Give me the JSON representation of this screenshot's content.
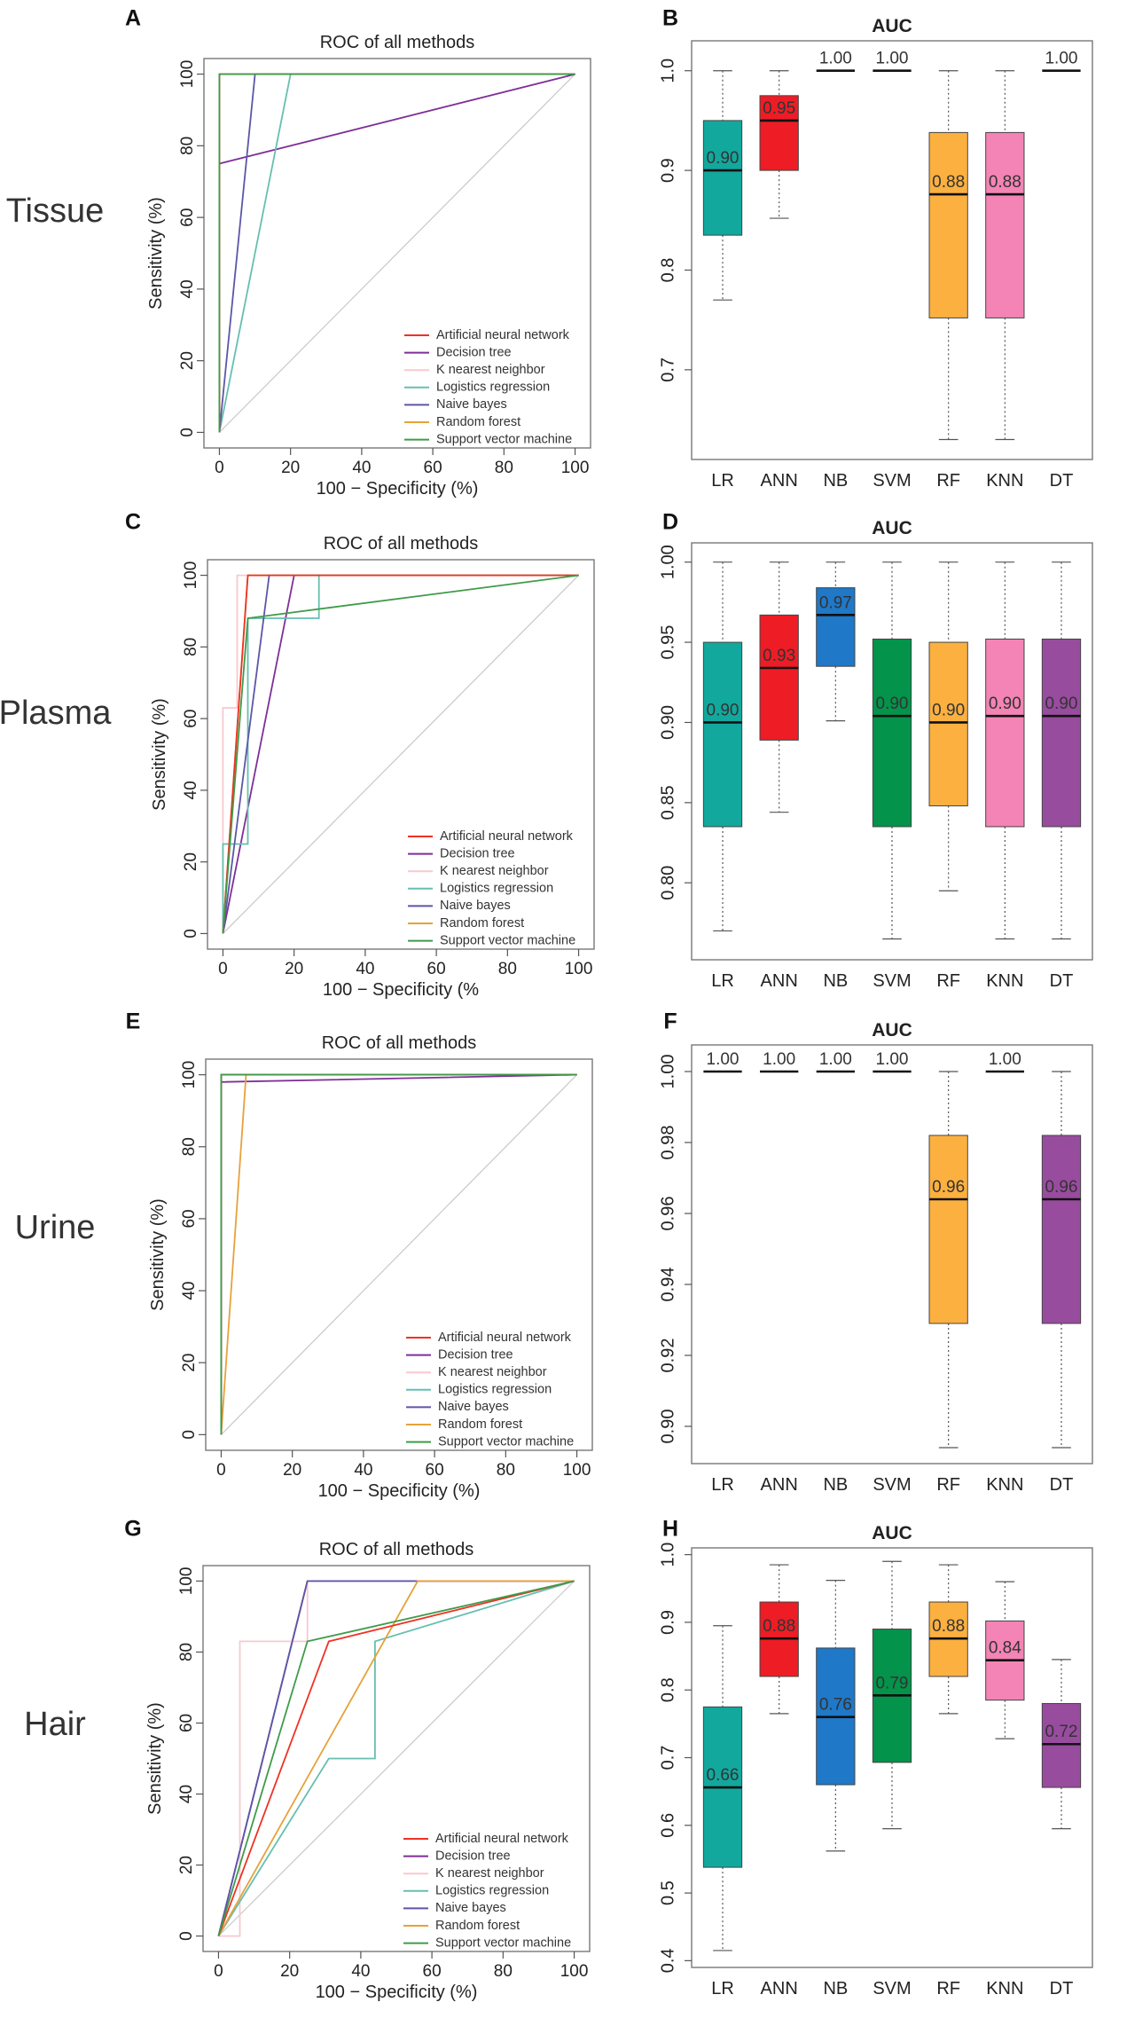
{
  "figure": {
    "row_labels": [
      "Tissue",
      "Plasma",
      "Urine",
      "Hair"
    ],
    "panel_letters": [
      "A",
      "B",
      "C",
      "D",
      "E",
      "F",
      "G",
      "H"
    ]
  },
  "colors": {
    "LR": "#12a89d",
    "ANN": "#ee1c25",
    "NB": "#1f78c8",
    "SVM": "#04934a",
    "RF": "#fbb040",
    "KNN": "#f384b5",
    "DT": "#984c9e",
    "roc_ann": "#ee3224",
    "roc_dt": "#7e2f97",
    "roc_knn": "#f9c8d0",
    "roc_lr": "#66bfb0",
    "roc_nb": "#5c56a8",
    "roc_rf": "#e6a23a",
    "roc_svm": "#3f9b4a"
  },
  "chart_data": [
    {
      "panel": "A",
      "type": "line",
      "title": "ROC of all methods",
      "xlabel": "100 − Specificity (%)",
      "ylabel": "Sensitivity (%)",
      "xlim": [
        0,
        100
      ],
      "ylim": [
        0,
        100
      ],
      "ticks": [
        "0",
        "20",
        "40",
        "60",
        "80",
        "100"
      ],
      "series": [
        {
          "name": "Artificial neural network",
          "color": "roc_ann",
          "x": [
            0,
            0,
            100
          ],
          "y": [
            0,
            100,
            100
          ]
        },
        {
          "name": "Decision tree",
          "color": "roc_dt",
          "x": [
            0,
            0,
            100
          ],
          "y": [
            0,
            75,
            100
          ]
        },
        {
          "name": "K nearest neighbor",
          "color": "roc_knn",
          "x": [
            0,
            0,
            100
          ],
          "y": [
            0,
            100,
            100
          ]
        },
        {
          "name": "Logistics regression",
          "color": "roc_lr",
          "x": [
            0,
            20,
            100
          ],
          "y": [
            0,
            100,
            100
          ]
        },
        {
          "name": "Naive bayes",
          "color": "roc_nb",
          "x": [
            0,
            10,
            100
          ],
          "y": [
            0,
            100,
            100
          ]
        },
        {
          "name": "Random forest",
          "color": "roc_rf",
          "x": [
            0,
            0,
            100
          ],
          "y": [
            0,
            100,
            100
          ]
        },
        {
          "name": "Support vector machine",
          "color": "roc_svm",
          "x": [
            0,
            0,
            100
          ],
          "y": [
            0,
            100,
            100
          ]
        }
      ]
    },
    {
      "panel": "B",
      "type": "box",
      "title": "AUC",
      "categories": [
        "LR",
        "ANN",
        "NB",
        "SVM",
        "RF",
        "KNN",
        "DT"
      ],
      "ylim": [
        0.61,
        1.03
      ],
      "yticks": [
        0.7,
        0.8,
        0.9,
        1.0
      ],
      "ytick_labels": [
        "0.7",
        "0.8",
        "0.9",
        "1.0"
      ],
      "boxes": [
        {
          "category": "LR",
          "min": 0.77,
          "q1": 0.835,
          "median": 0.9,
          "q3": 0.95,
          "max": 1.0,
          "label": "0.90"
        },
        {
          "category": "ANN",
          "min": 0.852,
          "q1": 0.9,
          "median": 0.95,
          "q3": 0.975,
          "max": 1.0,
          "label": "0.95"
        },
        {
          "category": "NB",
          "min": 1.0,
          "q1": 1.0,
          "median": 1.0,
          "q3": 1.0,
          "max": 1.0,
          "label": "1.00"
        },
        {
          "category": "SVM",
          "min": 1.0,
          "q1": 1.0,
          "median": 1.0,
          "q3": 1.0,
          "max": 1.0,
          "label": "1.00"
        },
        {
          "category": "RF",
          "min": 0.63,
          "q1": 0.752,
          "median": 0.876,
          "q3": 0.938,
          "max": 1.0,
          "label": "0.88"
        },
        {
          "category": "KNN",
          "min": 0.63,
          "q1": 0.752,
          "median": 0.876,
          "q3": 0.938,
          "max": 1.0,
          "label": "0.88"
        },
        {
          "category": "DT",
          "min": 1.0,
          "q1": 1.0,
          "median": 1.0,
          "q3": 1.0,
          "max": 1.0,
          "label": "1.00"
        }
      ]
    },
    {
      "panel": "C",
      "type": "line",
      "title": "ROC of all methods",
      "xlabel": "100 − Specificity (%",
      "ylabel": "Sensitivity (%)",
      "xlim": [
        0,
        100
      ],
      "ylim": [
        0,
        100
      ],
      "ticks": [
        "0",
        "20",
        "40",
        "60",
        "80",
        "100"
      ],
      "series": [
        {
          "name": "Artificial neural network",
          "color": "roc_ann",
          "x": [
            0,
            7,
            100
          ],
          "y": [
            0,
            100,
            100
          ]
        },
        {
          "name": "Decision tree",
          "color": "roc_dt",
          "x": [
            0,
            20,
            100
          ],
          "y": [
            0,
            100,
            100
          ]
        },
        {
          "name": "K nearest neighbor",
          "color": "roc_knn",
          "x": [
            0,
            0,
            4,
            4,
            100
          ],
          "y": [
            0,
            63,
            63,
            100,
            100
          ]
        },
        {
          "name": "Logistics regression",
          "color": "roc_lr",
          "x": [
            0,
            0,
            7,
            7,
            27,
            27,
            100
          ],
          "y": [
            0,
            25,
            25,
            88,
            88,
            100,
            100
          ]
        },
        {
          "name": "Naive bayes",
          "color": "roc_nb",
          "x": [
            0,
            13,
            100
          ],
          "y": [
            0,
            100,
            100
          ]
        },
        {
          "name": "Random forest",
          "color": "roc_rf",
          "x": [
            0,
            7,
            100
          ],
          "y": [
            0,
            100,
            100
          ]
        },
        {
          "name": "Support vector machine",
          "color": "roc_svm",
          "x": [
            0,
            7,
            100
          ],
          "y": [
            0,
            88,
            100
          ]
        }
      ]
    },
    {
      "panel": "D",
      "type": "box",
      "title": "AUC",
      "categories": [
        "LR",
        "ANN",
        "NB",
        "SVM",
        "RF",
        "KNN",
        "DT"
      ],
      "ylim": [
        0.752,
        1.012
      ],
      "yticks": [
        0.8,
        0.85,
        0.9,
        0.95,
        1.0
      ],
      "ytick_labels": [
        "0.80",
        "0.85",
        "0.90",
        "0.95",
        "1.00"
      ],
      "boxes": [
        {
          "category": "LR",
          "min": 0.77,
          "q1": 0.835,
          "median": 0.9,
          "q3": 0.95,
          "max": 1.0,
          "label": "0.90"
        },
        {
          "category": "ANN",
          "min": 0.844,
          "q1": 0.889,
          "median": 0.934,
          "q3": 0.967,
          "max": 1.0,
          "label": "0.93"
        },
        {
          "category": "NB",
          "min": 0.901,
          "q1": 0.935,
          "median": 0.967,
          "q3": 0.984,
          "max": 1.0,
          "label": "0.97"
        },
        {
          "category": "SVM",
          "min": 0.765,
          "q1": 0.835,
          "median": 0.904,
          "q3": 0.952,
          "max": 1.0,
          "label": "0.90"
        },
        {
          "category": "RF",
          "min": 0.795,
          "q1": 0.848,
          "median": 0.9,
          "q3": 0.95,
          "max": 1.0,
          "label": "0.90"
        },
        {
          "category": "KNN",
          "min": 0.765,
          "q1": 0.835,
          "median": 0.904,
          "q3": 0.952,
          "max": 1.0,
          "label": "0.90"
        },
        {
          "category": "DT",
          "min": 0.765,
          "q1": 0.835,
          "median": 0.904,
          "q3": 0.952,
          "max": 1.0,
          "label": "0.90"
        }
      ]
    },
    {
      "panel": "E",
      "type": "line",
      "title": "ROC of all methods",
      "xlabel": "100 − Specificity (%)",
      "ylabel": "Sensitivity (%)",
      "xlim": [
        0,
        100
      ],
      "ylim": [
        0,
        100
      ],
      "ticks": [
        "0",
        "20",
        "40",
        "60",
        "80",
        "100"
      ],
      "series": [
        {
          "name": "Artificial neural network",
          "color": "roc_ann",
          "x": [
            0,
            0,
            100
          ],
          "y": [
            0,
            100,
            100
          ]
        },
        {
          "name": "Decision tree",
          "color": "roc_dt",
          "x": [
            0,
            0,
            100
          ],
          "y": [
            0,
            98,
            100
          ]
        },
        {
          "name": "K nearest neighbor",
          "color": "roc_knn",
          "x": [
            0,
            0,
            100
          ],
          "y": [
            0,
            100,
            100
          ]
        },
        {
          "name": "Logistics regression",
          "color": "roc_lr",
          "x": [
            0,
            0,
            100
          ],
          "y": [
            0,
            100,
            100
          ]
        },
        {
          "name": "Naive bayes",
          "color": "roc_nb",
          "x": [
            0,
            0,
            100
          ],
          "y": [
            0,
            100,
            100
          ]
        },
        {
          "name": "Random forest",
          "color": "roc_rf",
          "x": [
            0,
            7,
            100
          ],
          "y": [
            0,
            100,
            100
          ]
        },
        {
          "name": "Support vector machine",
          "color": "roc_svm",
          "x": [
            0,
            0,
            100
          ],
          "y": [
            0,
            100,
            100
          ]
        }
      ]
    },
    {
      "panel": "F",
      "type": "box",
      "title": "AUC",
      "categories": [
        "LR",
        "ANN",
        "NB",
        "SVM",
        "RF",
        "KNN",
        "DT"
      ],
      "ylim": [
        0.8895,
        1.0075
      ],
      "yticks": [
        0.9,
        0.92,
        0.94,
        0.96,
        0.98,
        1.0
      ],
      "ytick_labels": [
        "0.90",
        "0.92",
        "0.94",
        "0.96",
        "0.98",
        "1.00"
      ],
      "boxes": [
        {
          "category": "LR",
          "min": 1.0,
          "q1": 1.0,
          "median": 1.0,
          "q3": 1.0,
          "max": 1.0,
          "label": "1.00"
        },
        {
          "category": "ANN",
          "min": 1.0,
          "q1": 1.0,
          "median": 1.0,
          "q3": 1.0,
          "max": 1.0,
          "label": "1.00"
        },
        {
          "category": "NB",
          "min": 1.0,
          "q1": 1.0,
          "median": 1.0,
          "q3": 1.0,
          "max": 1.0,
          "label": "1.00"
        },
        {
          "category": "SVM",
          "min": 1.0,
          "q1": 1.0,
          "median": 1.0,
          "q3": 1.0,
          "max": 1.0,
          "label": "1.00"
        },
        {
          "category": "RF",
          "min": 0.894,
          "q1": 0.929,
          "median": 0.964,
          "q3": 0.982,
          "max": 1.0,
          "label": "0.96"
        },
        {
          "category": "KNN",
          "min": 1.0,
          "q1": 1.0,
          "median": 1.0,
          "q3": 1.0,
          "max": 1.0,
          "label": "1.00"
        },
        {
          "category": "DT",
          "min": 0.894,
          "q1": 0.929,
          "median": 0.964,
          "q3": 0.982,
          "max": 1.0,
          "label": "0.96"
        }
      ]
    },
    {
      "panel": "G",
      "type": "line",
      "title": "ROC of all methods",
      "xlabel": "100 − Specificity (%)",
      "ylabel": "Sensitivity (%)",
      "xlim": [
        0,
        100
      ],
      "ylim": [
        0,
        100
      ],
      "ticks": [
        "0",
        "20",
        "40",
        "60",
        "80",
        "100"
      ],
      "series": [
        {
          "name": "Artificial neural network",
          "color": "roc_ann",
          "x": [
            0,
            31,
            100
          ],
          "y": [
            0,
            83,
            100
          ]
        },
        {
          "name": "Decision tree",
          "color": "roc_dt",
          "x": [
            0,
            25,
            100
          ],
          "y": [
            0,
            100,
            100
          ]
        },
        {
          "name": "K nearest neighbor",
          "color": "roc_knn",
          "x": [
            0,
            6,
            6,
            25,
            25,
            100
          ],
          "y": [
            0,
            0,
            83,
            83,
            100,
            100
          ]
        },
        {
          "name": "Logistics regression",
          "color": "roc_lr",
          "x": [
            0,
            31,
            44,
            44,
            100
          ],
          "y": [
            0,
            50,
            50,
            83,
            100
          ]
        },
        {
          "name": "Naive bayes",
          "color": "roc_nb",
          "x": [
            0,
            25,
            100
          ],
          "y": [
            0,
            100,
            100
          ]
        },
        {
          "name": "Random forest",
          "color": "roc_rf",
          "x": [
            0,
            56,
            100
          ],
          "y": [
            0,
            100,
            100
          ]
        },
        {
          "name": "Support vector machine",
          "color": "roc_svm",
          "x": [
            0,
            25,
            100
          ],
          "y": [
            0,
            83,
            100
          ]
        }
      ]
    },
    {
      "panel": "H",
      "type": "box",
      "title": "AUC",
      "categories": [
        "LR",
        "ANN",
        "NB",
        "SVM",
        "RF",
        "KNN",
        "DT"
      ],
      "ylim": [
        0.39,
        1.01
      ],
      "yticks": [
        0.4,
        0.5,
        0.6,
        0.7,
        0.8,
        0.9,
        1.0
      ],
      "ytick_labels": [
        "0.4",
        "0.5",
        "0.6",
        "0.7",
        "0.8",
        "0.9",
        "1.0"
      ],
      "boxes": [
        {
          "category": "LR",
          "min": 0.415,
          "q1": 0.538,
          "median": 0.656,
          "q3": 0.775,
          "max": 0.895,
          "label": "0.66"
        },
        {
          "category": "ANN",
          "min": 0.765,
          "q1": 0.82,
          "median": 0.876,
          "q3": 0.93,
          "max": 0.985,
          "label": "0.88"
        },
        {
          "category": "NB",
          "min": 0.562,
          "q1": 0.66,
          "median": 0.76,
          "q3": 0.862,
          "max": 0.962,
          "label": "0.76"
        },
        {
          "category": "SVM",
          "min": 0.595,
          "q1": 0.693,
          "median": 0.792,
          "q3": 0.89,
          "max": 0.99,
          "label": "0.79"
        },
        {
          "category": "RF",
          "min": 0.765,
          "q1": 0.82,
          "median": 0.876,
          "q3": 0.93,
          "max": 0.985,
          "label": "0.88"
        },
        {
          "category": "KNN",
          "min": 0.728,
          "q1": 0.785,
          "median": 0.844,
          "q3": 0.902,
          "max": 0.96,
          "label": "0.84"
        },
        {
          "category": "DT",
          "min": 0.595,
          "q1": 0.656,
          "median": 0.72,
          "q3": 0.78,
          "max": 0.845,
          "label": "0.72"
        }
      ]
    }
  ]
}
